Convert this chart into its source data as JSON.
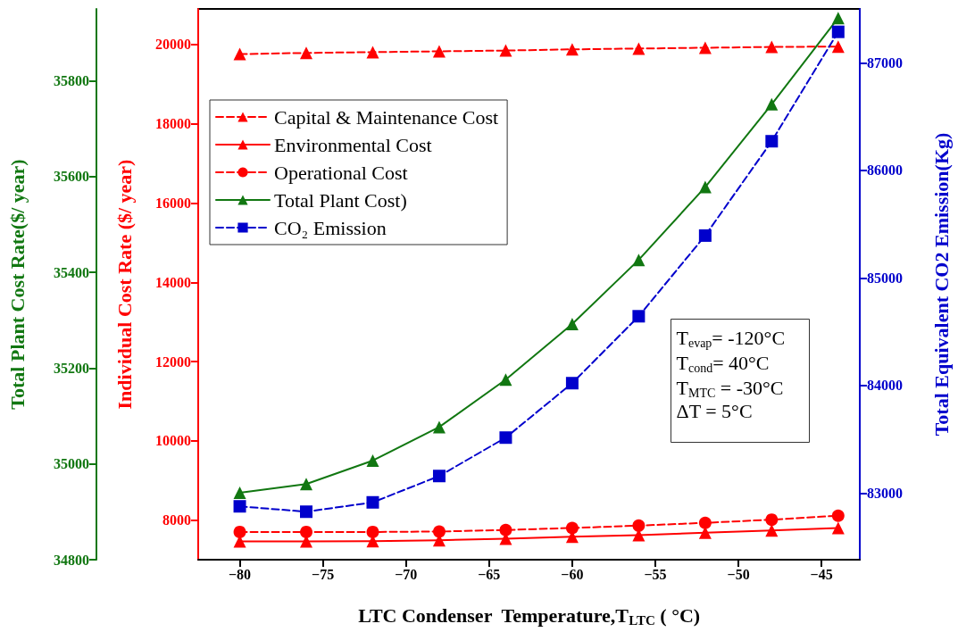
{
  "chart_data": {
    "type": "line",
    "xlabel": "LTC Condenser  Temperature,T$_{LTC}$ ( °C)",
    "ylabel": "Individual Cost Rate ($/ year)",
    "y2label": "Total Equivalent CO2 Emission(Kg)",
    "y3label": "Total Plant Cost Rate($/ year)",
    "x": [
      -80,
      -76,
      -72,
      -68,
      -64,
      -60,
      -56,
      -52,
      -48,
      -44
    ],
    "xlim": [
      -82.5,
      -42.7
    ],
    "xticks": [
      {
        "value": -80,
        "label": "−80"
      },
      {
        "value": -75,
        "label": "−75"
      },
      {
        "value": -70,
        "label": "−70"
      },
      {
        "value": -65,
        "label": "−65"
      },
      {
        "value": -60,
        "label": "−60"
      },
      {
        "value": -55,
        "label": "−55"
      },
      {
        "value": -50,
        "label": "−50"
      },
      {
        "value": -45,
        "label": "−45"
      }
    ],
    "ylim": [
      7000,
      20900
    ],
    "yticks": [
      8000,
      10000,
      12000,
      14000,
      16000,
      18000,
      20000
    ],
    "y2lim": [
      82380,
      87500
    ],
    "y2ticks": [
      83000,
      84000,
      85000,
      86000,
      87000
    ],
    "y3lim": [
      34800,
      35950
    ],
    "y3ticks": [
      34800,
      35000,
      35200,
      35400,
      35600,
      35800
    ],
    "grid": false,
    "legend": "top left",
    "series": [
      {
        "name": "Capital & Maintenance Cost",
        "color": "#ff0000",
        "marker": "triangle",
        "line_style": "dashed",
        "values": [
          19760,
          19790,
          19810,
          19830,
          19850,
          19880,
          19900,
          19920,
          19940,
          19950
        ]
      },
      {
        "name": "Environmental Cost",
        "color": "#ff0000",
        "marker": "triangle",
        "line_style": "solid",
        "values": [
          7460,
          7460,
          7470,
          7490,
          7530,
          7580,
          7620,
          7680,
          7740,
          7800
        ]
      },
      {
        "name": "Operational Cost",
        "color": "#ff0000",
        "marker": "circle",
        "line_style": "dashed",
        "values": [
          7700,
          7700,
          7700,
          7710,
          7750,
          7800,
          7860,
          7930,
          8010,
          8110
        ]
      },
      {
        "name": "Total Plant Cost)",
        "color": "#117711",
        "marker": "triangle",
        "line_style": "solid",
        "axis": "y3",
        "values": [
          34940,
          34958,
          35007,
          35077,
          35176,
          35292,
          35426,
          35578,
          35751,
          35931
        ]
      },
      {
        "name": "CO₂ Emission",
        "color": "#0000cc",
        "marker": "square",
        "line_style": "dashed",
        "axis": "y2",
        "values": [
          82876,
          82826,
          82913,
          83158,
          83515,
          84021,
          84643,
          85393,
          86270,
          87287
        ]
      }
    ],
    "annotations": [
      "T$_{evap}$= -120°C",
      "T$_{cond}$= 40°C",
      "T$_{MTC}$ = -30°C",
      "ΔT = 5°C"
    ]
  }
}
